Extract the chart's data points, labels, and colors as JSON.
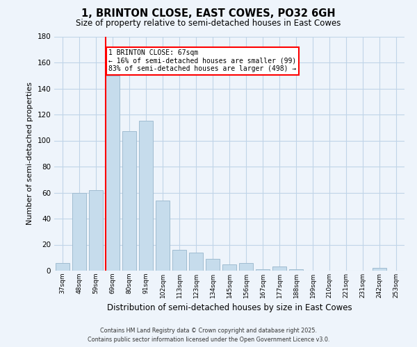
{
  "title": "1, BRINTON CLOSE, EAST COWES, PO32 6GH",
  "subtitle": "Size of property relative to semi-detached houses in East Cowes",
  "xlabel": "Distribution of semi-detached houses by size in East Cowes",
  "ylabel": "Number of semi-detached properties",
  "categories": [
    "37sqm",
    "48sqm",
    "59sqm",
    "69sqm",
    "80sqm",
    "91sqm",
    "102sqm",
    "113sqm",
    "123sqm",
    "134sqm",
    "145sqm",
    "156sqm",
    "167sqm",
    "177sqm",
    "188sqm",
    "199sqm",
    "210sqm",
    "221sqm",
    "231sqm",
    "242sqm",
    "253sqm"
  ],
  "values": [
    6,
    60,
    62,
    150,
    107,
    115,
    54,
    16,
    14,
    9,
    5,
    6,
    1,
    3,
    1,
    0,
    0,
    0,
    0,
    2,
    0
  ],
  "bar_color": "#c6dcec",
  "bar_edge_color": "#a0bcd0",
  "vline_color": "red",
  "vline_x_index": 3,
  "annotation_title": "1 BRINTON CLOSE: 67sqm",
  "annotation_line1": "← 16% of semi-detached houses are smaller (99)",
  "annotation_line2": "83% of semi-detached houses are larger (498) →",
  "ylim": [
    0,
    180
  ],
  "yticks": [
    0,
    20,
    40,
    60,
    80,
    100,
    120,
    140,
    160,
    180
  ],
  "footer_line1": "Contains HM Land Registry data © Crown copyright and database right 2025.",
  "footer_line2": "Contains public sector information licensed under the Open Government Licence v3.0.",
  "background_color": "#eef4fb",
  "grid_color": "#c0d4e8"
}
